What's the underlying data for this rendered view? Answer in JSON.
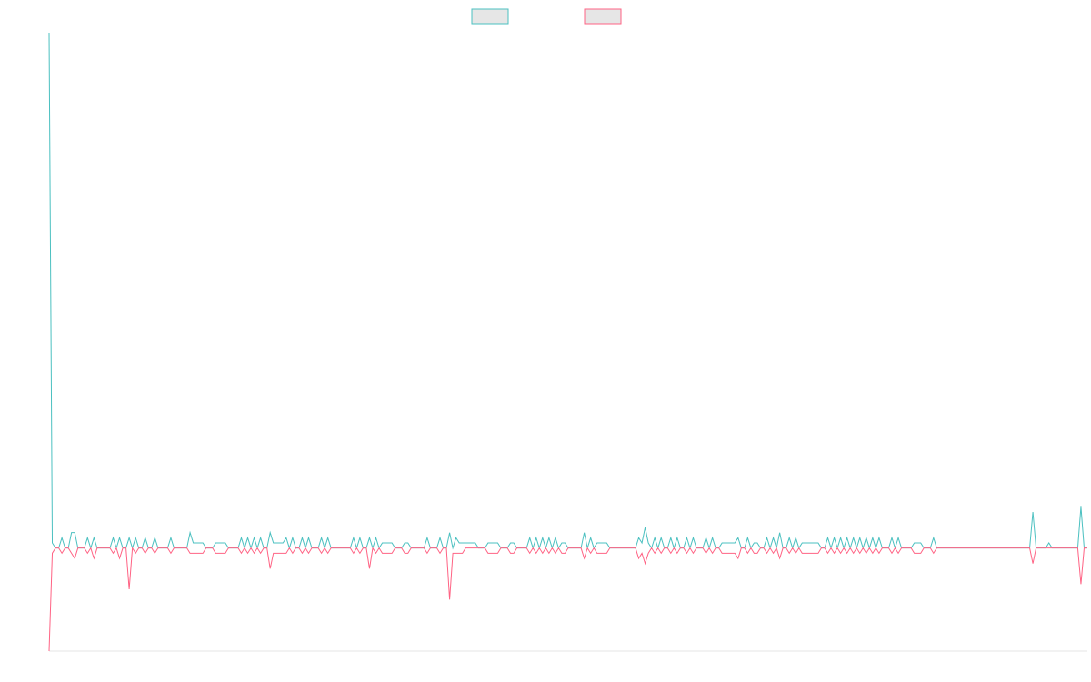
{
  "chart_data": {
    "type": "line",
    "title": "",
    "xlabel": "",
    "ylabel": "",
    "grid": false,
    "legend_position": "top",
    "series": [
      {
        "name": "",
        "color": "#4bc0c0",
        "fill": "#e6e6e6",
        "values": [
          1000,
          10,
          0,
          0,
          20,
          0,
          0,
          30,
          30,
          0,
          0,
          0,
          20,
          0,
          20,
          0,
          0,
          0,
          0,
          0,
          20,
          0,
          20,
          0,
          0,
          20,
          0,
          20,
          0,
          0,
          20,
          0,
          0,
          20,
          0,
          0,
          0,
          0,
          20,
          0,
          0,
          0,
          0,
          0,
          30,
          10,
          10,
          10,
          10,
          0,
          0,
          0,
          10,
          10,
          10,
          10,
          0,
          0,
          0,
          0,
          20,
          0,
          20,
          0,
          20,
          0,
          20,
          0,
          0,
          30,
          10,
          10,
          10,
          10,
          20,
          0,
          20,
          0,
          0,
          20,
          0,
          20,
          0,
          0,
          0,
          20,
          0,
          20,
          0,
          0,
          0,
          0,
          0,
          0,
          0,
          20,
          0,
          20,
          0,
          0,
          20,
          0,
          20,
          0,
          10,
          10,
          10,
          10,
          0,
          0,
          0,
          10,
          10,
          0,
          0,
          0,
          0,
          0,
          20,
          0,
          0,
          0,
          20,
          0,
          0,
          30,
          0,
          20,
          10,
          10,
          10,
          10,
          10,
          10,
          0,
          0,
          0,
          10,
          10,
          10,
          10,
          0,
          0,
          0,
          10,
          10,
          0,
          0,
          0,
          0,
          20,
          0,
          20,
          0,
          20,
          0,
          20,
          0,
          20,
          0,
          10,
          10,
          0,
          0,
          0,
          0,
          0,
          30,
          0,
          20,
          0,
          10,
          10,
          10,
          10,
          0,
          0,
          0,
          0,
          0,
          0,
          0,
          0,
          0,
          20,
          10,
          40,
          10,
          0,
          20,
          0,
          20,
          0,
          0,
          20,
          0,
          20,
          0,
          0,
          20,
          0,
          20,
          0,
          0,
          0,
          20,
          0,
          20,
          0,
          0,
          10,
          10,
          10,
          10,
          10,
          20,
          0,
          0,
          20,
          0,
          10,
          10,
          0,
          0,
          20,
          0,
          20,
          0,
          30,
          0,
          0,
          20,
          0,
          20,
          0,
          10,
          10,
          10,
          10,
          10,
          10,
          0,
          0,
          20,
          0,
          20,
          0,
          20,
          0,
          20,
          0,
          20,
          0,
          20,
          0,
          20,
          0,
          20,
          0,
          20,
          0,
          0,
          0,
          20,
          0,
          20,
          0,
          0,
          0,
          0,
          10,
          10,
          10,
          0,
          0,
          0,
          20,
          0,
          0,
          0,
          0,
          0,
          0,
          0,
          0,
          0,
          0,
          0,
          0,
          0,
          0,
          0,
          0,
          0,
          0,
          0,
          0,
          0,
          0,
          0,
          0,
          0,
          0,
          0,
          0,
          0,
          0,
          70,
          0,
          0,
          0,
          0,
          10,
          0,
          0,
          0,
          0,
          0,
          0,
          0,
          0,
          0,
          80,
          0,
          0
        ]
      },
      {
        "name": "",
        "color": "#ff6384",
        "fill": "#e6e6e6",
        "values": [
          -200,
          -10,
          0,
          0,
          -10,
          0,
          0,
          -10,
          -20,
          0,
          0,
          0,
          -10,
          0,
          -20,
          0,
          0,
          0,
          0,
          0,
          -10,
          0,
          -20,
          0,
          0,
          -80,
          0,
          -10,
          0,
          0,
          -10,
          0,
          0,
          -10,
          0,
          0,
          0,
          0,
          -10,
          0,
          0,
          0,
          0,
          0,
          -10,
          -10,
          -10,
          -10,
          -10,
          0,
          0,
          0,
          -10,
          -10,
          -10,
          -10,
          0,
          0,
          0,
          0,
          -10,
          0,
          -10,
          0,
          -10,
          0,
          -10,
          0,
          0,
          -40,
          -10,
          -10,
          -10,
          -10,
          -10,
          0,
          -10,
          0,
          0,
          -10,
          0,
          -10,
          0,
          0,
          0,
          -10,
          0,
          -10,
          0,
          0,
          0,
          0,
          0,
          0,
          0,
          -10,
          0,
          -10,
          0,
          0,
          -40,
          0,
          -10,
          0,
          -10,
          -10,
          -10,
          -10,
          0,
          0,
          0,
          -10,
          -10,
          0,
          0,
          0,
          0,
          0,
          -10,
          0,
          0,
          0,
          -10,
          0,
          0,
          -100,
          -10,
          -10,
          -10,
          -10,
          0,
          0,
          0,
          0,
          0,
          0,
          0,
          -10,
          -10,
          -10,
          -10,
          0,
          0,
          0,
          -10,
          -10,
          0,
          0,
          0,
          0,
          -10,
          0,
          -10,
          0,
          -10,
          0,
          -10,
          0,
          -10,
          0,
          -10,
          -10,
          0,
          0,
          0,
          0,
          0,
          -20,
          0,
          -10,
          0,
          -10,
          -10,
          -10,
          -10,
          0,
          0,
          0,
          0,
          0,
          0,
          0,
          0,
          0,
          -20,
          -10,
          -30,
          -10,
          0,
          -10,
          0,
          -10,
          0,
          0,
          -10,
          0,
          -10,
          0,
          0,
          -10,
          0,
          -10,
          0,
          0,
          0,
          -10,
          0,
          -10,
          0,
          0,
          -10,
          -10,
          -10,
          -10,
          -10,
          -20,
          0,
          0,
          -10,
          0,
          -10,
          -10,
          0,
          0,
          -10,
          0,
          -10,
          0,
          -20,
          0,
          0,
          -10,
          0,
          -10,
          0,
          -10,
          -10,
          -10,
          -10,
          -10,
          -10,
          0,
          0,
          -10,
          0,
          -10,
          0,
          -10,
          0,
          -10,
          0,
          -10,
          0,
          -10,
          0,
          -10,
          0,
          -10,
          0,
          -10,
          0,
          0,
          0,
          -10,
          0,
          -10,
          0,
          0,
          0,
          0,
          -10,
          -10,
          -10,
          0,
          0,
          0,
          -10,
          0,
          0,
          0,
          0,
          0,
          0,
          0,
          0,
          0,
          0,
          0,
          0,
          0,
          0,
          0,
          0,
          0,
          0,
          0,
          0,
          0,
          0,
          0,
          0,
          0,
          0,
          0,
          0,
          0,
          0,
          -30,
          0,
          0,
          0,
          0,
          0,
          0,
          0,
          0,
          0,
          0,
          0,
          0,
          0,
          0,
          -70,
          0,
          0
        ]
      }
    ]
  }
}
